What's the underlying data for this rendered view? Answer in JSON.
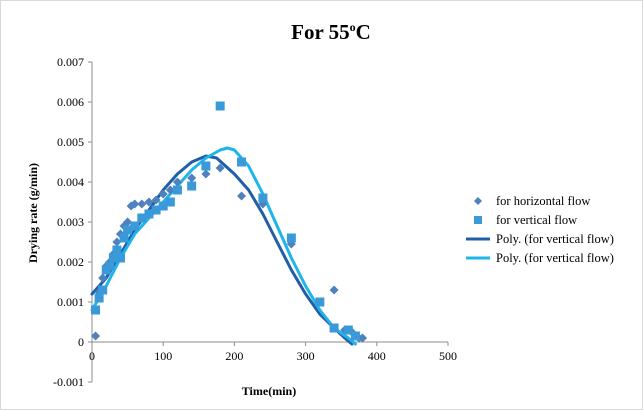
{
  "chart_data": {
    "type": "scatter",
    "title": {
      "prefix": "For 55",
      "superscript": "o",
      "suffix": "C"
    },
    "xlabel": "Time(min)",
    "ylabel": "Drying rate (g/min)",
    "xlim": [
      0,
      500
    ],
    "ylim": [
      -0.001,
      0.007
    ],
    "x_ticks": [
      "0",
      "100",
      "200",
      "300",
      "400",
      "500"
    ],
    "y_ticks": [
      "-0.001",
      "0",
      "0.001",
      "0.002",
      "0.003",
      "0.004",
      "0.005",
      "0.006",
      "0.007"
    ],
    "grid": false,
    "legend_position": "right",
    "series": [
      {
        "name": "for horizontal flow",
        "kind": "scatter",
        "marker": "diamond",
        "color": "#4f81bd",
        "points": [
          [
            5,
            0.00015
          ],
          [
            10,
            0.00125
          ],
          [
            15,
            0.0016
          ],
          [
            20,
            0.0019
          ],
          [
            25,
            0.002
          ],
          [
            30,
            0.0022
          ],
          [
            35,
            0.0025
          ],
          [
            40,
            0.0027
          ],
          [
            45,
            0.0029
          ],
          [
            50,
            0.003
          ],
          [
            55,
            0.0034
          ],
          [
            60,
            0.00345
          ],
          [
            70,
            0.00345
          ],
          [
            80,
            0.0035
          ],
          [
            90,
            0.00355
          ],
          [
            100,
            0.0037
          ],
          [
            110,
            0.0038
          ],
          [
            120,
            0.004
          ],
          [
            140,
            0.0041
          ],
          [
            160,
            0.0042
          ],
          [
            180,
            0.00435
          ],
          [
            210,
            0.00365
          ],
          [
            240,
            0.00345
          ],
          [
            280,
            0.00245
          ],
          [
            320,
            0.001
          ],
          [
            340,
            0.0013
          ],
          [
            355,
            0.0003
          ],
          [
            365,
            0.00025
          ],
          [
            375,
            0.0001
          ],
          [
            380,
            0.0001
          ]
        ]
      },
      {
        "name": "for vertical flow",
        "kind": "scatter",
        "marker": "square",
        "color": "#3a9ad9",
        "points": [
          [
            5,
            0.0008
          ],
          [
            10,
            0.0011
          ],
          [
            15,
            0.0013
          ],
          [
            20,
            0.0018
          ],
          [
            25,
            0.0019
          ],
          [
            30,
            0.0021
          ],
          [
            35,
            0.0023
          ],
          [
            40,
            0.0021
          ],
          [
            45,
            0.0026
          ],
          [
            50,
            0.0028
          ],
          [
            60,
            0.0029
          ],
          [
            70,
            0.0031
          ],
          [
            80,
            0.0032
          ],
          [
            90,
            0.0033
          ],
          [
            100,
            0.0034
          ],
          [
            110,
            0.0035
          ],
          [
            120,
            0.0038
          ],
          [
            140,
            0.0039
          ],
          [
            160,
            0.0044
          ],
          [
            180,
            0.0059
          ],
          [
            210,
            0.0045
          ],
          [
            240,
            0.0036
          ],
          [
            280,
            0.0026
          ],
          [
            320,
            0.001
          ],
          [
            340,
            0.00035
          ],
          [
            360,
            0.0003
          ],
          [
            370,
            0.00015
          ]
        ]
      },
      {
        "name": "Poly. (for vertical flow)",
        "kind": "line",
        "color": "#1f5fa8",
        "points": [
          [
            0,
            0.0012
          ],
          [
            20,
            0.0016
          ],
          [
            40,
            0.0022
          ],
          [
            60,
            0.0028
          ],
          [
            80,
            0.0033
          ],
          [
            100,
            0.0038
          ],
          [
            120,
            0.0042
          ],
          [
            140,
            0.0045
          ],
          [
            160,
            0.00465
          ],
          [
            175,
            0.0046
          ],
          [
            200,
            0.0042
          ],
          [
            220,
            0.0038
          ],
          [
            240,
            0.0032
          ],
          [
            260,
            0.0025
          ],
          [
            280,
            0.0018
          ],
          [
            300,
            0.0012
          ],
          [
            320,
            0.0007
          ],
          [
            340,
            0.00035
          ],
          [
            355,
            0.0001
          ],
          [
            365,
            -5e-05
          ]
        ]
      },
      {
        "name": "Poly. (for vertical flow)",
        "kind": "line",
        "color": "#1fb5ea",
        "points": [
          [
            0,
            0.0008
          ],
          [
            20,
            0.0014
          ],
          [
            40,
            0.0021
          ],
          [
            60,
            0.0027
          ],
          [
            80,
            0.0031
          ],
          [
            100,
            0.0035
          ],
          [
            120,
            0.0039
          ],
          [
            140,
            0.0043
          ],
          [
            160,
            0.0046
          ],
          [
            180,
            0.0048
          ],
          [
            190,
            0.00485
          ],
          [
            200,
            0.0048
          ],
          [
            220,
            0.0044
          ],
          [
            240,
            0.0037
          ],
          [
            260,
            0.0029
          ],
          [
            280,
            0.0021
          ],
          [
            300,
            0.0014
          ],
          [
            320,
            0.0008
          ],
          [
            340,
            0.00035
          ],
          [
            360,
            0.0001
          ],
          [
            370,
            -5e-05
          ]
        ]
      }
    ]
  }
}
